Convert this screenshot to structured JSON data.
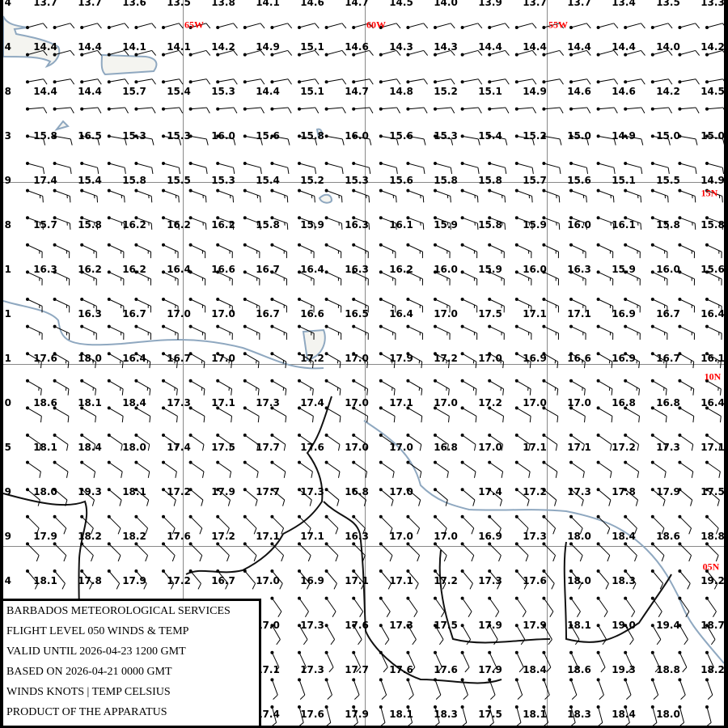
{
  "legend": {
    "lines": [
      "BARBADOS METEOROLOGICAL SERVICES",
      "FLIGHT LEVEL 050 WINDS & TEMP",
      "VALID UNTIL 2026-04-23 1200 GMT",
      "BASED ON 2026-04-21 0000 GMT",
      "WINDS KNOTS | TEMP CELSIUS",
      "PRODUCT OF THE APPARATUS"
    ]
  },
  "geo_labels": {
    "lon": [
      "65W",
      "60W",
      "55W"
    ],
    "lat": [
      "15N",
      "10N",
      "05N"
    ]
  },
  "colors": {
    "coast": "#8fa8c0",
    "border": "#111111",
    "grid": "#888888",
    "geo_label": "#ff0000"
  },
  "temps_edge": [
    "4",
    "4",
    "8",
    "3",
    "9",
    "8",
    "1",
    "1",
    "1",
    "0",
    "5",
    "9",
    "9",
    "4",
    null,
    null,
    null
  ],
  "temps": [
    [
      "13.7",
      "13.7",
      "13.6",
      "13.5",
      "13.8",
      "14.1",
      "14.6",
      "14.7",
      "14.5",
      "14.0",
      "13.9",
      "13.7",
      "13.7",
      "13.4",
      "13.5",
      "13.3"
    ],
    [
      "14.4",
      "14.4",
      "14.1",
      "14.1",
      "14.2",
      "14.9",
      "15.1",
      "14.6",
      "14.3",
      "14.3",
      "14.4",
      "14.4",
      "14.4",
      "14.4",
      "14.0",
      "14.2"
    ],
    [
      "14.4",
      "14.4",
      "15.7",
      "15.4",
      "15.3",
      "14.4",
      "15.1",
      "14.7",
      "14.8",
      "15.2",
      "15.1",
      "14.9",
      "14.6",
      "14.6",
      "14.2",
      "14.5"
    ],
    [
      "15.8",
      "16.5",
      "15.3",
      "15.3",
      "16.0",
      "15.6",
      "15.8",
      "16.0",
      "15.6",
      "15.3",
      "15.4",
      "15.2",
      "15.0",
      "14.9",
      "15.0",
      "15.0"
    ],
    [
      "17.4",
      "15.4",
      "15.8",
      "15.5",
      "15.3",
      "15.4",
      "15.2",
      "15.3",
      "15.6",
      "15.8",
      "15.8",
      "15.7",
      "15.6",
      "15.1",
      "15.5",
      "14.9"
    ],
    [
      "15.7",
      "15.8",
      "16.2",
      "16.2",
      "16.2",
      "15.8",
      "15.9",
      "16.3",
      "16.1",
      "15.9",
      "15.8",
      "15.9",
      "16.0",
      "16.1",
      "15.8",
      "15.8"
    ],
    [
      "16.3",
      "16.2",
      "16.2",
      "16.4",
      "16.6",
      "16.7",
      "16.4",
      "16.3",
      "16.2",
      "16.0",
      "15.9",
      "16.0",
      "16.3",
      "15.9",
      "16.0",
      "15.6"
    ],
    [
      null,
      "16.3",
      "16.7",
      "17.0",
      "17.0",
      "16.7",
      "16.6",
      "16.5",
      "16.4",
      "17.0",
      "17.5",
      "17.1",
      "17.1",
      "16.9",
      "16.7",
      "16.4"
    ],
    [
      "17.6",
      "18.0",
      "16.4",
      "16.7",
      "17.0",
      null,
      "17.2",
      "17.0",
      "17.9",
      "17.2",
      "17.0",
      "16.9",
      "16.6",
      "16.9",
      "16.7",
      "16.1"
    ],
    [
      "18.6",
      "18.1",
      "18.4",
      "17.3",
      "17.1",
      "17.3",
      "17.4",
      "17.0",
      "17.1",
      "17.0",
      "17.2",
      "17.0",
      "17.0",
      "16.8",
      "16.8",
      "16.4"
    ],
    [
      "18.1",
      "18.4",
      "18.0",
      "17.4",
      "17.5",
      "17.7",
      "17.6",
      "17.0",
      "17.0",
      "16.8",
      "17.0",
      "17.1",
      "17.1",
      "17.2",
      "17.3",
      "17.1"
    ],
    [
      "18.0",
      "19.3",
      "18.1",
      "17.2",
      "17.9",
      "17.7",
      "17.3",
      "16.8",
      "17.0",
      null,
      "17.4",
      "17.2",
      "17.3",
      "17.8",
      "17.9",
      "17.5"
    ],
    [
      "17.9",
      "18.2",
      "18.2",
      "17.6",
      "17.2",
      "17.1",
      "17.1",
      "16.3",
      "17.0",
      "17.0",
      "16.9",
      "17.3",
      "18.0",
      "18.4",
      "18.6",
      "18.8"
    ],
    [
      "18.1",
      "17.8",
      "17.9",
      "17.2",
      "16.7",
      "17.0",
      "16.9",
      "17.1",
      "17.1",
      "17.2",
      "17.3",
      "17.6",
      "18.0",
      "18.3",
      null,
      "19.2"
    ],
    [
      null,
      null,
      null,
      null,
      null,
      "17.0",
      "17.3",
      "17.6",
      "17.3",
      "17.5",
      "17.9",
      "17.9",
      "18.1",
      "19.0",
      "19.4",
      "18.7"
    ],
    [
      null,
      null,
      null,
      null,
      null,
      "17.1",
      "17.3",
      "17.7",
      "17.6",
      "17.6",
      "17.9",
      "18.4",
      "18.6",
      "19.3",
      "18.8",
      "18.2"
    ],
    [
      null,
      null,
      null,
      null,
      null,
      "17.4",
      "17.6",
      "17.9",
      "18.1",
      "18.3",
      "17.5",
      "18.1",
      "18.3",
      "18.4",
      "18.0",
      null
    ]
  ],
  "wind_rows": [
    {
      "dir": 75,
      "kt": 10
    },
    {
      "dir": 75,
      "kt": 10
    },
    {
      "dir": 80,
      "kt": 10
    },
    {
      "dir": 85,
      "kt": 10
    },
    {
      "dir": 100,
      "kt": 10
    },
    {
      "dir": 105,
      "kt": 10
    },
    {
      "dir": 110,
      "kt": 15
    },
    {
      "dir": 110,
      "kt": 15
    },
    {
      "dir": 115,
      "kt": 15
    },
    {
      "dir": 115,
      "kt": 15
    },
    {
      "dir": 115,
      "kt": 15
    },
    {
      "dir": 115,
      "kt": 15
    },
    {
      "dir": 120,
      "kt": 15
    },
    {
      "dir": 120,
      "kt": 15
    },
    {
      "dir": 120,
      "kt": 10
    },
    {
      "dir": 125,
      "kt": 10
    },
    {
      "dir": 125,
      "kt": 10
    },
    {
      "dir": 130,
      "kt": 10
    },
    {
      "dir": 135,
      "kt": 10
    },
    {
      "dir": 135,
      "kt": 10
    },
    {
      "dir": 140,
      "kt": 10
    },
    {
      "dir": 145,
      "kt": 10
    },
    {
      "dir": 150,
      "kt": 10
    },
    {
      "dir": 155,
      "kt": 10
    },
    {
      "dir": 160,
      "kt": 10
    },
    {
      "dir": 165,
      "kt": 10
    },
    {
      "dir": 165,
      "kt": 10
    }
  ]
}
